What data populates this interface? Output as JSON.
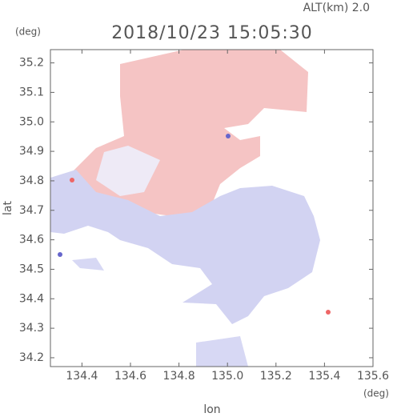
{
  "chart_data": {
    "type": "map",
    "title": "2018/10/23 15:05:30",
    "subtitle": "ALT(km) 2.0",
    "y_unit": "(deg)",
    "x_unit": "(deg)",
    "ylabel": "lat",
    "xlabel": "lon",
    "xlim": [
      134.27,
      135.6
    ],
    "xticks": [
      {
        "value": 134.4,
        "label": "134.4"
      },
      {
        "value": 134.6,
        "label": "134.6"
      },
      {
        "value": 134.8,
        "label": "134.8"
      },
      {
        "value": 135.0,
        "label": "135.0"
      },
      {
        "value": 135.2,
        "label": "135.2"
      },
      {
        "value": 135.4,
        "label": "135.4"
      },
      {
        "value": 135.6,
        "label": "135.6"
      }
    ],
    "ylim": [
      34.17,
      35.245
    ],
    "yticks": [
      {
        "value": 34.2,
        "label": "34.2"
      },
      {
        "value": 34.3,
        "label": "34.3"
      },
      {
        "value": 34.4,
        "label": "34.4"
      },
      {
        "value": 34.5,
        "label": "34.5"
      },
      {
        "value": 34.6,
        "label": "34.6"
      },
      {
        "value": 34.7,
        "label": "34.7"
      },
      {
        "value": 34.8,
        "label": "34.8"
      },
      {
        "value": 34.9,
        "label": "34.9"
      },
      {
        "value": 35.0,
        "label": "35.0"
      },
      {
        "value": 35.1,
        "label": "35.1"
      },
      {
        "value": 35.2,
        "label": "35.2"
      }
    ],
    "grid": false
  }
}
